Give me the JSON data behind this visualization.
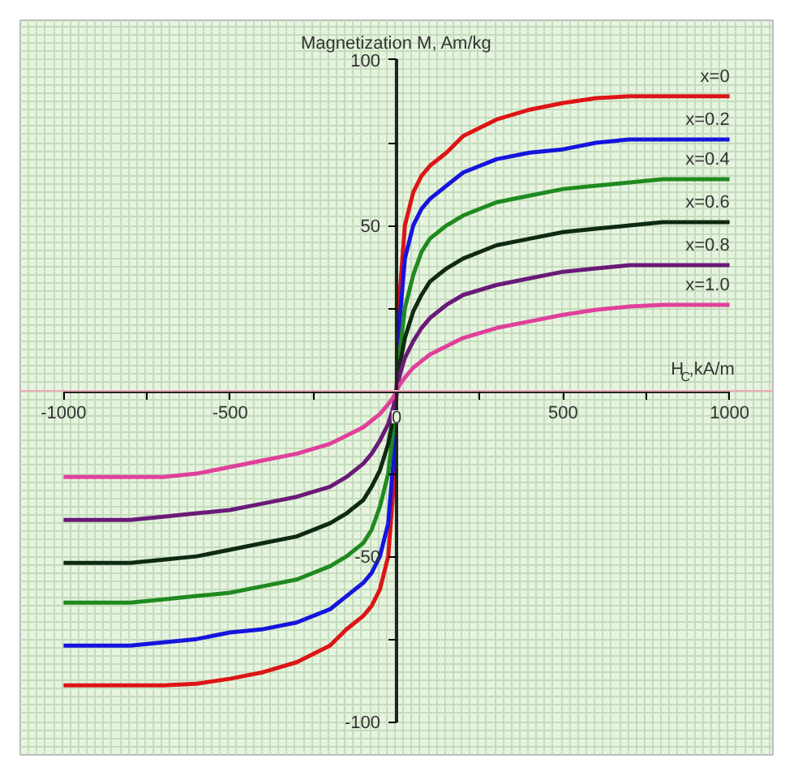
{
  "chart_data": {
    "type": "line",
    "xlabel": "H$_{C}$,kA/m",
    "ylabel": "Magnetization M, Am/kg",
    "x": [
      -1000,
      -900,
      -800,
      -700,
      -600,
      -500,
      -400,
      -300,
      -200,
      -150,
      -100,
      -75,
      -50,
      -25,
      -10,
      0,
      10,
      25,
      50,
      75,
      100,
      150,
      200,
      300,
      400,
      500,
      600,
      700,
      800,
      900,
      1000
    ],
    "series": [
      {
        "name": "x=0",
        "color": "#dd1515",
        "values": [
          -89,
          -89,
          -89,
          -89,
          -88.5,
          -87,
          -85,
          -82,
          -77,
          -72,
          -68,
          -65,
          -60,
          -50,
          -30,
          0,
          30,
          50,
          60,
          65,
          68,
          72,
          77,
          82,
          85,
          87,
          88.5,
          89,
          89,
          89,
          89
        ]
      },
      {
        "name": "x=0.2",
        "color": "#1515dd",
        "values": [
          -77,
          -77,
          -77,
          -76,
          -75,
          -73,
          -72,
          -70,
          -66,
          -62,
          -58,
          -55,
          -50,
          -40,
          -22,
          0,
          22,
          40,
          50,
          55,
          58,
          62,
          66,
          70,
          72,
          73,
          75,
          76,
          76,
          76,
          76
        ]
      },
      {
        "name": "x=0.4",
        "color": "#1f8a1f",
        "values": [
          -64,
          -64,
          -64,
          -63,
          -62,
          -61,
          -59,
          -57,
          -53,
          -50,
          -46,
          -42,
          -35,
          -25,
          -12,
          0,
          12,
          25,
          35,
          42,
          46,
          50,
          53,
          57,
          59,
          61,
          62,
          63,
          64,
          64,
          64
        ]
      },
      {
        "name": "x=0.6",
        "color": "#0f2a12",
        "values": [
          -52,
          -52,
          -52,
          -51,
          -50,
          -48,
          -46,
          -44,
          -40,
          -37,
          -33,
          -29,
          -24,
          -16,
          -8,
          0,
          8,
          16,
          24,
          29,
          33,
          37,
          40,
          44,
          46,
          48,
          49,
          50,
          51,
          51,
          51
        ]
      },
      {
        "name": "x=0.8",
        "color": "#6a1a78",
        "values": [
          -39,
          -39,
          -39,
          -38,
          -37,
          -36,
          -34,
          -32,
          -29,
          -26,
          -22,
          -19,
          -15,
          -10,
          -5,
          0,
          5,
          10,
          15,
          19,
          22,
          26,
          29,
          32,
          34,
          36,
          37,
          38,
          38,
          38,
          38
        ]
      },
      {
        "name": "x=1.0",
        "color": "#e0409a",
        "values": [
          -26,
          -26,
          -26,
          -26,
          -25,
          -23,
          -21,
          -19,
          -16,
          -13.5,
          -11,
          -9,
          -7,
          -4,
          -2,
          0,
          2,
          4,
          7,
          9,
          11,
          13.5,
          16,
          19,
          21,
          23,
          24.5,
          25.5,
          26,
          26,
          26
        ]
      }
    ],
    "xlim": [
      -1130,
      1130
    ],
    "ylim": [
      -110,
      112
    ],
    "xticks": [
      -1000,
      {
        "value": -750,
        "label": null
      },
      -500,
      {
        "value": -250,
        "label": null
      },
      0,
      {
        "value": 250,
        "label": null
      },
      500,
      {
        "value": 750,
        "label": null
      },
      1000
    ],
    "yticks": [
      -100,
      {
        "value": -75,
        "label": null
      },
      -50,
      {
        "value": -25,
        "label": null
      },
      {
        "value": 25,
        "label": null
      },
      50,
      {
        "value": 75,
        "label": null
      },
      100
    ],
    "ref_lines": [
      {
        "axis": "y",
        "value": 0,
        "color": "#f0a8b8"
      }
    ],
    "grid": true,
    "line_style": "solid"
  }
}
